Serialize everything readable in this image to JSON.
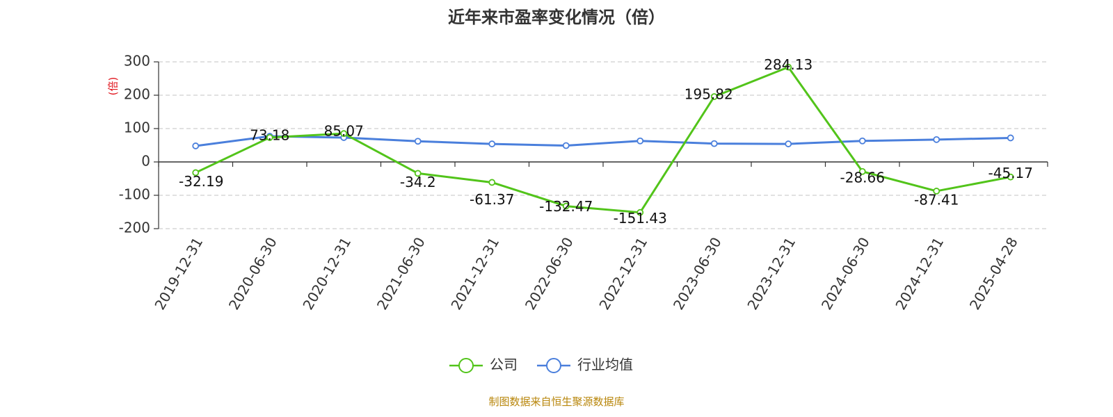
{
  "chart_data": {
    "type": "line",
    "title": "近年来市盈率变化情况（倍）",
    "ylabel": "(倍)",
    "xlabel": "",
    "categories": [
      "2019-12-31",
      "2020-06-30",
      "2020-12-31",
      "2021-06-30",
      "2021-12-31",
      "2022-06-30",
      "2022-12-31",
      "2023-06-30",
      "2023-12-31",
      "2024-06-30",
      "2024-12-31",
      "2025-04-28"
    ],
    "ylim": [
      -200,
      300
    ],
    "yticks": [
      300,
      200,
      100,
      0,
      -100,
      -200
    ],
    "grid": true,
    "legend_position": "bottom",
    "series": [
      {
        "name": "公司",
        "color": "#52c41a",
        "show_labels": true,
        "values": [
          -32.19,
          73.18,
          85.07,
          -34.2,
          -61.37,
          -132.47,
          -151.43,
          195.82,
          284.13,
          -28.66,
          -87.41,
          -45.17
        ],
        "labels": [
          "-32.19",
          "73.18",
          "85.07",
          "-34.2",
          "-61.37",
          "-132.47",
          "-151.43",
          "195.82",
          "284.13",
          "-28.66",
          "-87.41",
          "-45.17"
        ]
      },
      {
        "name": "行业均值",
        "color": "#4a7fdc",
        "show_labels": false,
        "values": [
          48,
          77,
          73,
          62,
          54,
          49,
          63,
          55,
          54,
          63,
          67,
          72
        ]
      }
    ]
  },
  "source": "制图数据来自恒生聚源数据库"
}
